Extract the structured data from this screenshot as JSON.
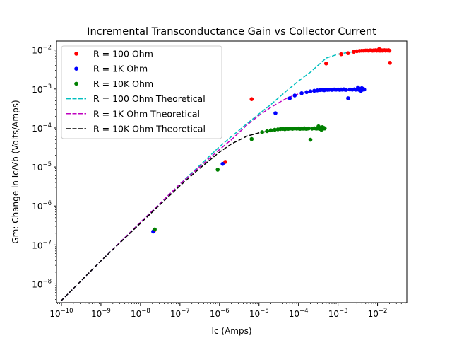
{
  "chart_data": {
    "type": "scatter",
    "title": "Incremental Transconductance Gain vs Collector Current",
    "xlabel": "Ic (Amps)",
    "ylabel": "Gm: Change in Ic/Vb (Volts/Amps)",
    "xscale": "log",
    "yscale": "log",
    "xlim": [
      7.5e-11,
      0.055
    ],
    "ylim": [
      3.3e-09,
      0.017
    ],
    "grid": false,
    "legend_position": "top-left",
    "x_ticks": [
      {
        "base": "10",
        "exp": "−10",
        "value": 1e-10
      },
      {
        "base": "10",
        "exp": "−9",
        "value": 1e-09
      },
      {
        "base": "10",
        "exp": "−8",
        "value": 1e-08
      },
      {
        "base": "10",
        "exp": "−7",
        "value": 1e-07
      },
      {
        "base": "10",
        "exp": "−6",
        "value": 1e-06
      },
      {
        "base": "10",
        "exp": "−5",
        "value": 1e-05
      },
      {
        "base": "10",
        "exp": "−4",
        "value": 0.0001
      },
      {
        "base": "10",
        "exp": "−3",
        "value": 0.001
      },
      {
        "base": "10",
        "exp": "−2",
        "value": 0.01
      }
    ],
    "y_ticks": [
      {
        "base": "10",
        "exp": "−8",
        "value": 1e-08
      },
      {
        "base": "10",
        "exp": "−7",
        "value": 1e-07
      },
      {
        "base": "10",
        "exp": "−6",
        "value": 1e-06
      },
      {
        "base": "10",
        "exp": "−5",
        "value": 1e-05
      },
      {
        "base": "10",
        "exp": "−4",
        "value": 0.0001
      },
      {
        "base": "10",
        "exp": "−3",
        "value": 0.001
      },
      {
        "base": "10",
        "exp": "−2",
        "value": 0.01
      }
    ],
    "series": [
      {
        "name": "R = 100 Ohm",
        "kind": "scatter",
        "color": "#ff0000",
        "points": [
          [
            2.2e-08,
            2.3e-07
          ],
          [
            1.4e-06,
            1.35e-05
          ],
          [
            6.5e-06,
            0.00055
          ],
          [
            0.0005,
            0.0045
          ],
          [
            0.0012,
            0.0078
          ],
          [
            0.0018,
            0.0083
          ],
          [
            0.0025,
            0.009
          ],
          [
            0.003,
            0.0093
          ],
          [
            0.0035,
            0.0095
          ],
          [
            0.004,
            0.0096
          ],
          [
            0.0045,
            0.0096
          ],
          [
            0.005,
            0.0097
          ],
          [
            0.0055,
            0.0097
          ],
          [
            0.006,
            0.0096
          ],
          [
            0.0065,
            0.0098
          ],
          [
            0.007,
            0.0097
          ],
          [
            0.0075,
            0.0096
          ],
          [
            0.008,
            0.0098
          ],
          [
            0.0085,
            0.0097
          ],
          [
            0.009,
            0.0099
          ],
          [
            0.0095,
            0.0096
          ],
          [
            0.01,
            0.0098
          ],
          [
            0.0105,
            0.0097
          ],
          [
            0.011,
            0.0106
          ],
          [
            0.0115,
            0.0096
          ],
          [
            0.012,
            0.01
          ],
          [
            0.0125,
            0.0097
          ],
          [
            0.013,
            0.0098
          ],
          [
            0.0135,
            0.0096
          ],
          [
            0.014,
            0.0097
          ],
          [
            0.015,
            0.0099
          ],
          [
            0.016,
            0.0096
          ],
          [
            0.017,
            0.0098
          ],
          [
            0.018,
            0.0097
          ],
          [
            0.019,
            0.0099
          ],
          [
            0.02,
            0.0096
          ],
          [
            0.0205,
            0.0047
          ]
        ]
      },
      {
        "name": "R = 1K Ohm",
        "kind": "scatter",
        "color": "#0000ff",
        "points": [
          [
            2.1e-08,
            2.2e-07
          ],
          [
            1.2e-06,
            1.2e-05
          ],
          [
            2.6e-05,
            0.00024
          ],
          [
            6e-05,
            0.00058
          ],
          [
            8e-05,
            0.00068
          ],
          [
            0.00012,
            0.00078
          ],
          [
            0.00016,
            0.00083
          ],
          [
            0.0002,
            0.00087
          ],
          [
            0.00025,
            0.0009
          ],
          [
            0.0003,
            0.00092
          ],
          [
            0.00035,
            0.00094
          ],
          [
            0.0004,
            0.00095
          ],
          [
            0.00045,
            0.00093
          ],
          [
            0.0005,
            0.00096
          ],
          [
            0.00055,
            0.00095
          ],
          [
            0.0006,
            0.00096
          ],
          [
            0.0007,
            0.00095
          ],
          [
            0.0008,
            0.00097
          ],
          [
            0.0009,
            0.00096
          ],
          [
            0.001,
            0.00097
          ],
          [
            0.0011,
            0.00095
          ],
          [
            0.0012,
            0.00097
          ],
          [
            0.0013,
            0.00096
          ],
          [
            0.0014,
            0.00098
          ],
          [
            0.0015,
            0.00096
          ],
          [
            0.0016,
            0.00095
          ],
          [
            0.0018,
            0.00058
          ],
          [
            0.002,
            0.00097
          ],
          [
            0.0023,
            0.00096
          ],
          [
            0.0026,
            0.00098
          ],
          [
            0.0028,
            0.00096
          ],
          [
            0.003,
            0.00097
          ],
          [
            0.0032,
            0.0011
          ],
          [
            0.0034,
            0.00095
          ],
          [
            0.0036,
            0.001
          ],
          [
            0.0038,
            0.0009
          ],
          [
            0.004,
            0.00105
          ],
          [
            0.0042,
            0.00096
          ],
          [
            0.0044,
            0.001
          ],
          [
            0.0046,
            0.00097
          ]
        ]
      },
      {
        "name": "R = 10K Ohm",
        "kind": "scatter",
        "color": "#008000",
        "points": [
          [
            2.3e-08,
            2.5e-07
          ],
          [
            9e-07,
            8.5e-06
          ],
          [
            6.5e-06,
            5.2e-05
          ],
          [
            1.2e-05,
            7.8e-05
          ],
          [
            1.6e-05,
            8.3e-05
          ],
          [
            2e-05,
            8.7e-05
          ],
          [
            2.5e-05,
            9e-05
          ],
          [
            3e-05,
            9.2e-05
          ],
          [
            3.5e-05,
            9.4e-05
          ],
          [
            4e-05,
            9.5e-05
          ],
          [
            4.5e-05,
            9.3e-05
          ],
          [
            5e-05,
            9.6e-05
          ],
          [
            5.5e-05,
            9.5e-05
          ],
          [
            6e-05,
            9.6e-05
          ],
          [
            7e-05,
            9.5e-05
          ],
          [
            8e-05,
            9.7e-05
          ],
          [
            9e-05,
            9.6e-05
          ],
          [
            0.0001,
            9.7e-05
          ],
          [
            0.00011,
            9.5e-05
          ],
          [
            0.00012,
            9.7e-05
          ],
          [
            0.00013,
            9.6e-05
          ],
          [
            0.00014,
            9.8e-05
          ],
          [
            0.00015,
            9.6e-05
          ],
          [
            0.00016,
            9.5e-05
          ],
          [
            0.00018,
            9.7e-05
          ],
          [
            0.0002,
            5e-05
          ],
          [
            0.00022,
            9.6e-05
          ],
          [
            0.00025,
            9.8e-05
          ],
          [
            0.00028,
            9.6e-05
          ],
          [
            0.0003,
            9.7e-05
          ],
          [
            0.00032,
            0.00011
          ],
          [
            0.00034,
            9.5e-05
          ],
          [
            0.00036,
            0.0001
          ],
          [
            0.00038,
            9e-05
          ],
          [
            0.0004,
            0.000105
          ],
          [
            0.00042,
            9.6e-05
          ],
          [
            0.00044,
            0.0001
          ],
          [
            0.00046,
            9.7e-05
          ]
        ]
      },
      {
        "name": "R = 100 Ohm Theoretical",
        "kind": "line",
        "dash": "dashed",
        "color": "#00bfbf",
        "points": [
          [
            7.5e-11,
            2.8e-09
          ],
          [
            1e-09,
            3.9e-08
          ],
          [
            1e-08,
            3.8e-07
          ],
          [
            1e-07,
            3.65e-06
          ],
          [
            1e-06,
            3.3e-05
          ],
          [
            2e-06,
            6e-05
          ],
          [
            5e-06,
            0.00013
          ],
          [
            1e-05,
            0.00023
          ],
          [
            2e-05,
            0.0004
          ],
          [
            5e-05,
            0.0009
          ],
          [
            0.0001,
            0.0016
          ],
          [
            0.0002,
            0.0027
          ],
          [
            0.0005,
            0.0062
          ],
          [
            0.001,
            0.0078
          ],
          [
            0.002,
            0.0088
          ],
          [
            0.005,
            0.0095
          ],
          [
            0.01,
            0.0097
          ],
          [
            0.0205,
            0.0098
          ]
        ]
      },
      {
        "name": "R = 1K Ohm Theoretical",
        "kind": "line",
        "dash": "dashed",
        "color": "#bf00bf",
        "points": [
          [
            7.5e-11,
            2.8e-09
          ],
          [
            1e-09,
            3.9e-08
          ],
          [
            1e-08,
            3.8e-07
          ],
          [
            1e-07,
            3.65e-06
          ],
          [
            1e-06,
            2.8e-05
          ],
          [
            2e-06,
            5e-05
          ],
          [
            5e-06,
            0.00012
          ],
          [
            1e-05,
            0.00021
          ],
          [
            2e-05,
            0.00034
          ],
          [
            5e-05,
            0.00058
          ],
          [
            0.0001,
            0.00075
          ],
          [
            0.0002,
            0.00086
          ],
          [
            0.0005,
            0.00092
          ],
          [
            0.001,
            0.00095
          ],
          [
            0.002,
            0.00096
          ],
          [
            0.0046,
            0.00097
          ]
        ]
      },
      {
        "name": "R = 10K Ohm Theoretical",
        "kind": "line",
        "dash": "dashed",
        "color": "#000000",
        "points": [
          [
            7.5e-11,
            2.8e-09
          ],
          [
            1e-09,
            3.9e-08
          ],
          [
            1e-08,
            3.6e-07
          ],
          [
            1e-07,
            3.3e-06
          ],
          [
            3e-07,
            8.8e-06
          ],
          [
            1e-06,
            2.4e-05
          ],
          [
            2e-06,
            3.9e-05
          ],
          [
            5e-06,
            6.2e-05
          ],
          [
            1e-05,
            7.5e-05
          ],
          [
            2e-05,
            8.5e-05
          ],
          [
            5e-05,
            9.1e-05
          ],
          [
            0.0001,
            9.4e-05
          ],
          [
            0.0002,
            9.6e-05
          ],
          [
            0.00046,
            9.7e-05
          ]
        ]
      }
    ]
  }
}
